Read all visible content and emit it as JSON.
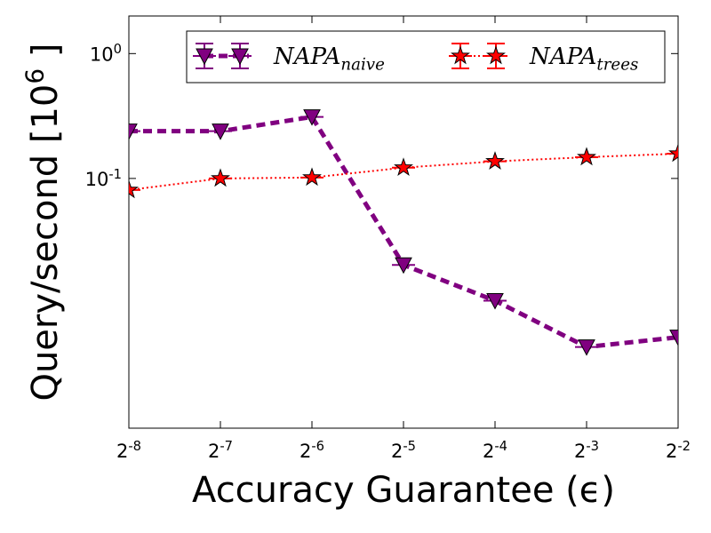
{
  "chart_data": {
    "type": "line",
    "xlabel": "Accuracy Guarantee (ϵ)",
    "ylabel": "Query/second [10^6 ]",
    "xscale": "log2",
    "yscale": "log",
    "x": [
      0.00390625,
      0.0078125,
      0.015625,
      0.03125,
      0.0625,
      0.125,
      0.25
    ],
    "xlim": [
      0.00390625,
      0.25
    ],
    "xticks": [
      {
        "value": 0.00390625,
        "label": "2^-8"
      },
      {
        "value": 0.0078125,
        "label": "2^-7"
      },
      {
        "value": 0.015625,
        "label": "2^-6"
      },
      {
        "value": 0.03125,
        "label": "2^-5"
      },
      {
        "value": 0.0625,
        "label": "2^-4"
      },
      {
        "value": 0.125,
        "label": "2^-3"
      },
      {
        "value": 0.25,
        "label": "2^-2"
      }
    ],
    "ylim": [
      0.001,
      2
    ],
    "yticks": [
      {
        "value": 0.1,
        "label": "10^-1"
      },
      {
        "value": 1,
        "label": "10^0"
      }
    ],
    "legend_position": "upper right",
    "series": [
      {
        "name": "NAPA_naive",
        "color": "#800080",
        "marker": "triangle-down",
        "line": "dashed",
        "values": [
          0.239,
          0.239,
          0.311,
          0.0203,
          0.0105,
          0.00447,
          0.00535
        ]
      },
      {
        "name": "NAPA_trees",
        "color": "#ff0000",
        "marker": "star",
        "line": "dotted",
        "values": [
          0.0808,
          0.1,
          0.1017,
          0.122,
          0.137,
          0.148,
          0.158
        ]
      }
    ]
  }
}
